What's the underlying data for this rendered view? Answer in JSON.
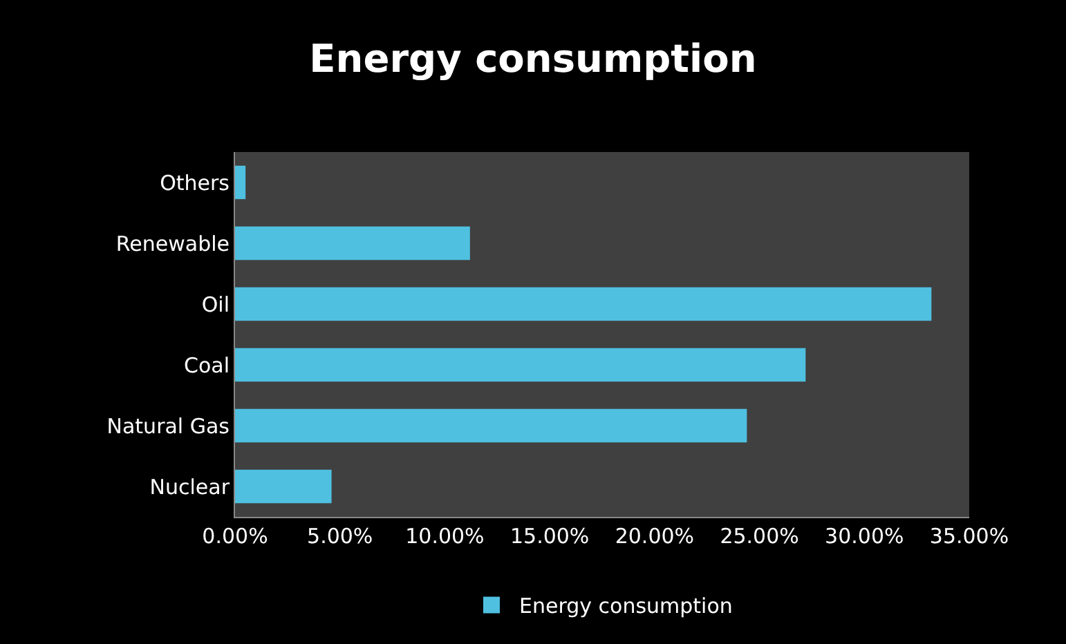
{
  "chart_data": {
    "type": "bar",
    "orientation": "horizontal",
    "title": "Energy consumption",
    "categories": [
      "Others",
      "Renewable",
      "Oil",
      "Coal",
      "Natural Gas",
      "Nuclear"
    ],
    "series": [
      {
        "name": "Energy consumption",
        "color": "#4fc0e0",
        "values": [
          0.5,
          11.2,
          33.2,
          27.2,
          24.4,
          4.6
        ]
      }
    ],
    "xlim": [
      0,
      35
    ],
    "xticks": [
      {
        "value": 0,
        "label": "0.00%"
      },
      {
        "value": 5,
        "label": "5.00%"
      },
      {
        "value": 10,
        "label": "10.00%"
      },
      {
        "value": 15,
        "label": "15.00%"
      },
      {
        "value": 20,
        "label": "20.00%"
      },
      {
        "value": 25,
        "label": "25.00%"
      },
      {
        "value": 30,
        "label": "30.00%"
      },
      {
        "value": 35,
        "label": "35.00%"
      }
    ],
    "legend": "bottom"
  }
}
